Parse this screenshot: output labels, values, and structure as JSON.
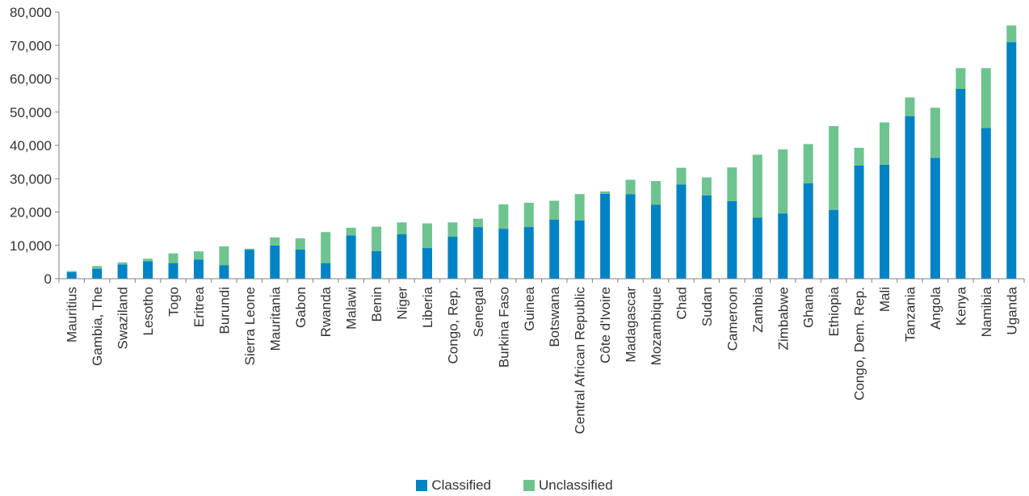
{
  "chart_data": {
    "type": "bar",
    "stacked": true,
    "categories": [
      "Mauritius",
      "Gambia, The",
      "Swaziland",
      "Lesotho",
      "Togo",
      "Eritrea",
      "Burundi",
      "Sierra Leone",
      "Mauritania",
      "Gabon",
      "Rwanda",
      "Malawi",
      "Benin",
      "Niger",
      "Liberia",
      "Congo, Rep.",
      "Senegal",
      "Burkina Faso",
      "Guinea",
      "Botswana",
      "Central African Republic",
      "Côte d'Ivoire",
      "Madagascar",
      "Mozambique",
      "Chad",
      "Sudan",
      "Cameroon",
      "Zambia",
      "Zimbabwe",
      "Ghana",
      "Ethiopia",
      "Congo, Dem. Rep.",
      "Mali",
      "Tanzania",
      "Angola",
      "Kenya",
      "Namibia",
      "Uganda"
    ],
    "series": [
      {
        "name": "Classified",
        "color": "#0083c5",
        "values": [
          2000,
          3000,
          4300,
          5200,
          4700,
          5700,
          4000,
          8700,
          10000,
          8800,
          4700,
          13000,
          8300,
          13400,
          9200,
          12600,
          15500,
          15000,
          15500,
          17700,
          17500,
          25500,
          25400,
          22200,
          28300,
          25000,
          23300,
          18300,
          19600,
          28600,
          20600,
          34000,
          34200,
          48800,
          36300,
          57000,
          45200,
          71000
        ]
      },
      {
        "name": "Unclassified",
        "color": "#6ec48f",
        "values": [
          300,
          800,
          600,
          800,
          2900,
          2500,
          5700,
          300,
          2400,
          3300,
          9300,
          2300,
          7300,
          3500,
          7400,
          4300,
          2500,
          7300,
          7300,
          5700,
          7900,
          700,
          4300,
          7100,
          5000,
          5400,
          10100,
          18900,
          19200,
          11800,
          25200,
          5300,
          12700,
          5600,
          15000,
          6200,
          18000,
          5000
        ]
      }
    ],
    "yticks": [
      "0",
      "10,000",
      "20,000",
      "30,000",
      "40,000",
      "50,000",
      "60,000",
      "70,000",
      "80,000"
    ],
    "ylim": [
      0,
      80000
    ],
    "legend_position": "bottom-center",
    "grid": false
  }
}
